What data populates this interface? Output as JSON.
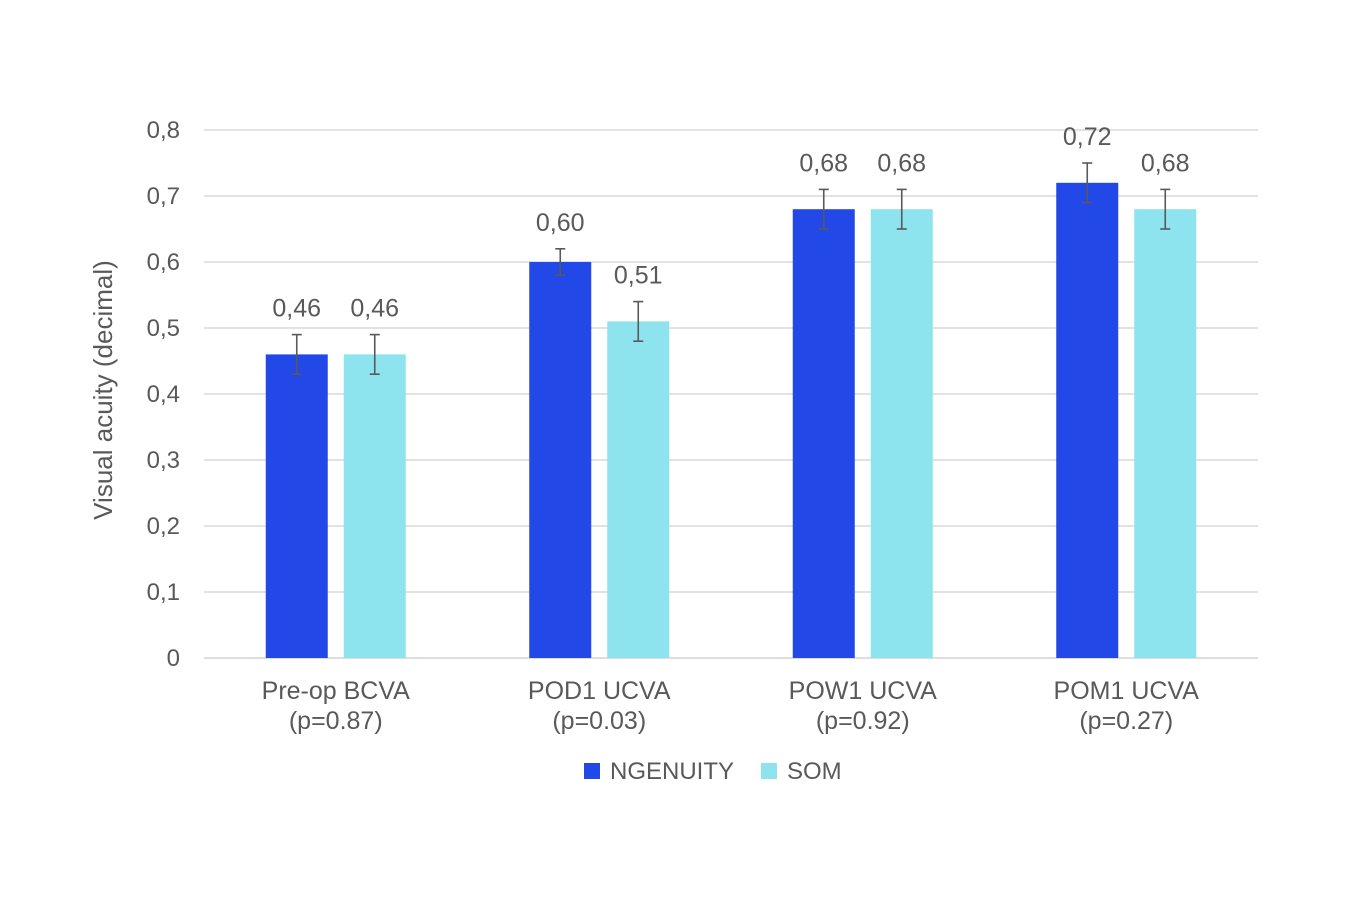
{
  "chart_data": {
    "type": "bar",
    "title": "",
    "ylabel": "Visual acuity (decimal)",
    "xlabel": "",
    "ylim": [
      0,
      0.8
    ],
    "yticks": [
      0,
      0.1,
      0.2,
      0.3,
      0.4,
      0.5,
      0.6,
      0.7,
      0.8
    ],
    "ytick_labels": [
      "0",
      "0,1",
      "0,2",
      "0,3",
      "0,4",
      "0,5",
      "0,6",
      "0,7",
      "0,8"
    ],
    "grid": true,
    "legend_position": "bottom",
    "categories": [
      {
        "line1": "Pre-op BCVA",
        "line2": "(p=0.87)"
      },
      {
        "line1": "POD1 UCVA",
        "line2": "(p=0.03)"
      },
      {
        "line1": "POW1 UCVA",
        "line2": "(p=0.92)"
      },
      {
        "line1": "POM1 UCVA",
        "line2": "(p=0.27)"
      }
    ],
    "series": [
      {
        "name": "NGENUITY",
        "color": "#2348E8",
        "values": [
          0.46,
          0.6,
          0.68,
          0.72
        ],
        "labels": [
          "0,46",
          "0,60",
          "0,68",
          "0,72"
        ],
        "error": [
          0.03,
          0.02,
          0.03,
          0.03
        ]
      },
      {
        "name": "SOM",
        "color": "#8DE3EE",
        "values": [
          0.46,
          0.51,
          0.68,
          0.68
        ],
        "labels": [
          "0,46",
          "0,51",
          "0,68",
          "0,68"
        ],
        "error": [
          0.03,
          0.03,
          0.03,
          0.03
        ]
      }
    ]
  }
}
